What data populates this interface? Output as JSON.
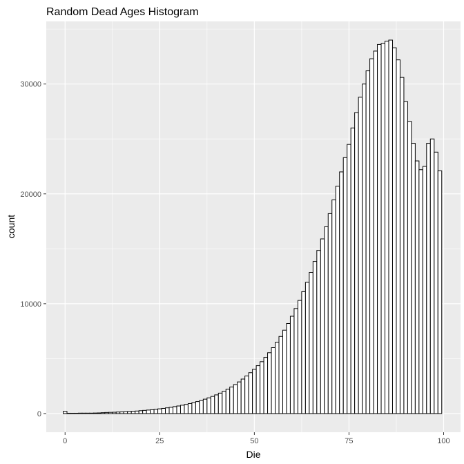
{
  "chart_data": {
    "type": "bar",
    "title": "Random Dead Ages Histogram",
    "xlabel": "Die",
    "ylabel": "count",
    "xlim": [
      -4.97,
      104.47
    ],
    "ylim": [
      -1700,
      35700
    ],
    "x_ticks": [
      0,
      25,
      50,
      75,
      100
    ],
    "x_tick_labels": [
      "0",
      "25",
      "50",
      "75",
      "100"
    ],
    "y_ticks": [
      0,
      10000,
      20000,
      30000
    ],
    "y_tick_labels": [
      "0",
      "10000",
      "20000",
      "30000"
    ],
    "grid": true,
    "binwidth": 1,
    "x": [
      0,
      1,
      2,
      3,
      4,
      5,
      6,
      7,
      8,
      9,
      10,
      11,
      12,
      13,
      14,
      15,
      16,
      17,
      18,
      19,
      20,
      21,
      22,
      23,
      24,
      25,
      26,
      27,
      28,
      29,
      30,
      31,
      32,
      33,
      34,
      35,
      36,
      37,
      38,
      39,
      40,
      41,
      42,
      43,
      44,
      45,
      46,
      47,
      48,
      49,
      50,
      51,
      52,
      53,
      54,
      55,
      56,
      57,
      58,
      59,
      60,
      61,
      62,
      63,
      64,
      65,
      66,
      67,
      68,
      69,
      70,
      71,
      72,
      73,
      74,
      75,
      76,
      77,
      78,
      79,
      80,
      81,
      82,
      83,
      84,
      85,
      86,
      87,
      88,
      89,
      90,
      91,
      92,
      93,
      94,
      95,
      96,
      97,
      98,
      99
    ],
    "values": [
      200,
      30,
      30,
      30,
      40,
      40,
      40,
      40,
      50,
      60,
      80,
      100,
      110,
      120,
      140,
      150,
      170,
      190,
      210,
      230,
      260,
      290,
      320,
      350,
      390,
      430,
      470,
      520,
      570,
      630,
      690,
      760,
      830,
      910,
      1000,
      1090,
      1190,
      1310,
      1430,
      1560,
      1700,
      1860,
      2030,
      2220,
      2420,
      2640,
      2880,
      3140,
      3420,
      3720,
      4030,
      4360,
      4720,
      5110,
      5540,
      6000,
      6490,
      7020,
      7590,
      8200,
      8860,
      9560,
      10300,
      11100,
      11950,
      12850,
      13850,
      14850,
      15900,
      17000,
      18200,
      19450,
      20700,
      22000,
      23300,
      24500,
      26000,
      27400,
      28800,
      30000,
      31200,
      32300,
      33000,
      33600,
      33700,
      33900,
      34000,
      33300,
      32200,
      30600,
      28400,
      26600,
      24600,
      23000,
      22200,
      22500,
      24600,
      25000,
      23800,
      22100
    ]
  }
}
